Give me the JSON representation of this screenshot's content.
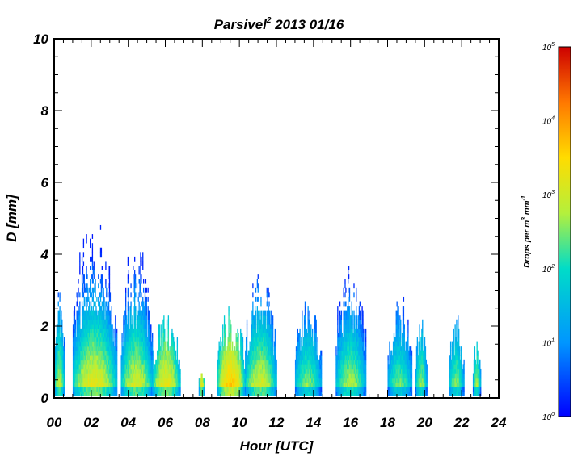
{
  "chart_data": {
    "type": "heatmap",
    "title": "Parsivel",
    "title_superscript": "2",
    "title_date": "2013 01/16",
    "xlabel": "Hour [UTC]",
    "ylabel": "D [mm]",
    "xlim": [
      0,
      24
    ],
    "ylim": [
      0,
      10
    ],
    "xticks": [
      "00",
      "02",
      "04",
      "06",
      "08",
      "10",
      "12",
      "14",
      "16",
      "18",
      "20",
      "22",
      "24"
    ],
    "yticks": [
      "0",
      "2",
      "4",
      "6",
      "8",
      "10"
    ],
    "colorbar": {
      "label": "Drops per m",
      "label_sup1": "3",
      "label_mid": " mm",
      "label_sup2": "-1",
      "scale": "log",
      "range": [
        1,
        100000
      ],
      "ticks": [
        {
          "base": "10",
          "exp": "0"
        },
        {
          "base": "10",
          "exp": "1"
        },
        {
          "base": "10",
          "exp": "2"
        },
        {
          "base": "10",
          "exp": "3"
        },
        {
          "base": "10",
          "exp": "4"
        },
        {
          "base": "10",
          "exp": "5"
        }
      ],
      "colormap": "rainbow (blue → cyan → green → yellow → orange → red)"
    },
    "precipitation_periods": [
      {
        "start_hour": 0.0,
        "end_hour": 0.55,
        "max_d_mm": 3.2,
        "peak_log10_n": 2.9
      },
      {
        "start_hour": 1.0,
        "end_hour": 3.4,
        "max_d_mm": 5.2,
        "peak_log10_n": 3.3
      },
      {
        "start_hour": 3.6,
        "end_hour": 5.3,
        "max_d_mm": 4.6,
        "peak_log10_n": 3.1
      },
      {
        "start_hour": 5.3,
        "end_hour": 6.8,
        "max_d_mm": 2.3,
        "peak_log10_n": 3.3
      },
      {
        "start_hour": 7.8,
        "end_hour": 8.1,
        "max_d_mm": 0.7,
        "peak_log10_n": 3.2
      },
      {
        "start_hour": 8.8,
        "end_hour": 10.3,
        "max_d_mm": 2.6,
        "peak_log10_n": 3.7
      },
      {
        "start_hour": 10.3,
        "end_hour": 12.0,
        "max_d_mm": 3.7,
        "peak_log10_n": 3.1
      },
      {
        "start_hour": 13.0,
        "end_hour": 14.4,
        "max_d_mm": 3.0,
        "peak_log10_n": 2.6
      },
      {
        "start_hour": 15.2,
        "end_hour": 16.8,
        "max_d_mm": 4.2,
        "peak_log10_n": 2.8
      },
      {
        "start_hour": 18.0,
        "end_hour": 19.3,
        "max_d_mm": 3.0,
        "peak_log10_n": 2.5
      },
      {
        "start_hour": 19.5,
        "end_hour": 20.1,
        "max_d_mm": 2.4,
        "peak_log10_n": 2.7
      },
      {
        "start_hour": 21.3,
        "end_hour": 22.1,
        "max_d_mm": 2.3,
        "peak_log10_n": 2.6
      },
      {
        "start_hour": 22.6,
        "end_hour": 23.0,
        "max_d_mm": 1.7,
        "peak_log10_n": 2.7
      }
    ],
    "colors": {
      "axis": "#000000",
      "background": "#ffffff"
    },
    "grid": false
  }
}
